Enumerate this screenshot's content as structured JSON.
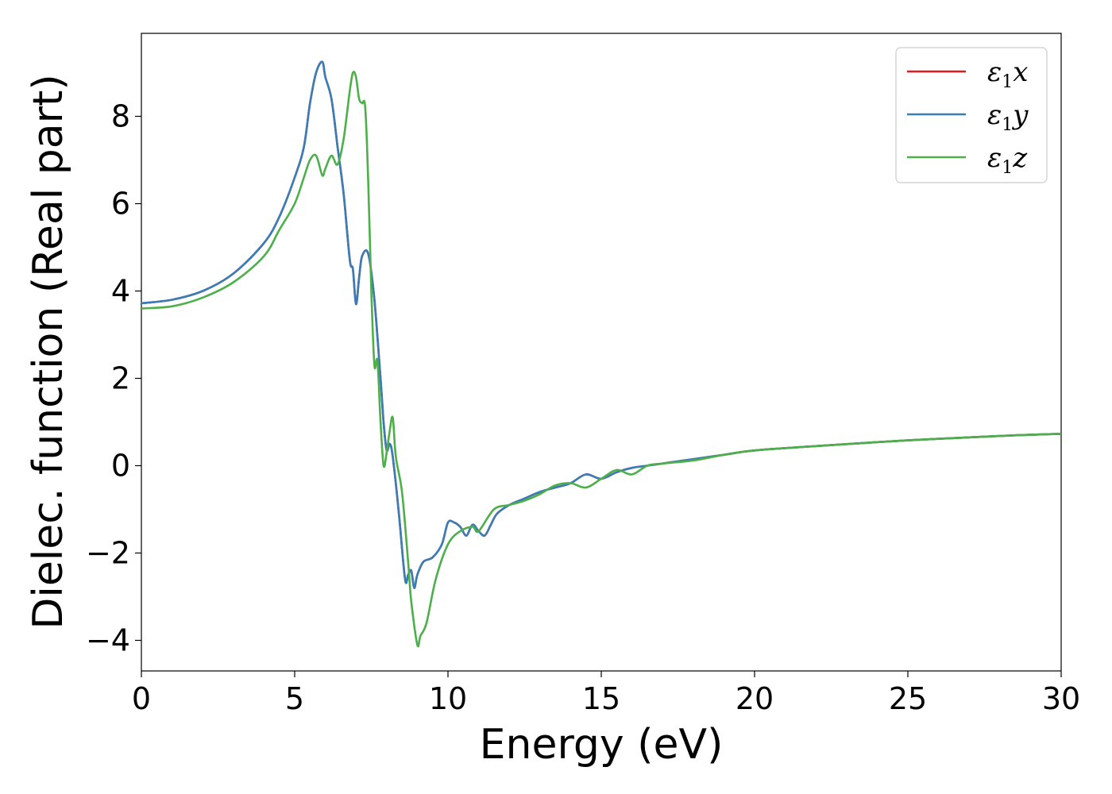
{
  "chart_data": {
    "type": "line",
    "xlabel": "Energy (eV)",
    "ylabel": "Dielec. function (Real part)",
    "xlim": [
      0,
      30
    ],
    "ylim": [
      -4.7,
      9.9
    ],
    "xticks": [
      0,
      5,
      10,
      15,
      20,
      25,
      30
    ],
    "yticks": [
      -4,
      -2,
      0,
      2,
      4,
      6,
      8
    ],
    "xtick_labels": [
      "0",
      "5",
      "10",
      "15",
      "20",
      "25",
      "30"
    ],
    "ytick_labels": [
      "−4",
      "−2",
      "0",
      "2",
      "4",
      "6",
      "8"
    ],
    "grid": false,
    "legend_position": "top-right",
    "series": [
      {
        "name": "ε1x",
        "legend_base": "ε",
        "legend_sub": "1",
        "legend_tail": "x",
        "color": "#e41a1c",
        "x": [
          0,
          1,
          2,
          3,
          4,
          4.5,
          5,
          5.3,
          5.5,
          5.7,
          5.9,
          6.0,
          6.2,
          6.4,
          6.6,
          6.8,
          6.9,
          7.0,
          7.1,
          7.2,
          7.4,
          7.6,
          7.8,
          7.9,
          8.0,
          8.1,
          8.2,
          8.4,
          8.6,
          8.7,
          8.8,
          8.9,
          9.0,
          9.2,
          9.5,
          9.8,
          10.0,
          10.2,
          10.4,
          10.6,
          10.8,
          11.0,
          11.2,
          11.4,
          11.6,
          12.0,
          12.5,
          13.0,
          13.5,
          14.0,
          14.5,
          15.0,
          15.5,
          16.0,
          16.5,
          17.0,
          17.5,
          18.0,
          19.0,
          20.0,
          22.0,
          25.0,
          28.0,
          30.0
        ],
        "y": [
          3.72,
          3.8,
          4.0,
          4.4,
          5.1,
          5.7,
          6.6,
          7.3,
          8.3,
          9.0,
          9.25,
          8.9,
          8.4,
          7.3,
          6.2,
          4.7,
          4.5,
          3.7,
          4.3,
          4.8,
          4.85,
          3.8,
          2.0,
          1.0,
          0.35,
          0.5,
          0.2,
          -1.1,
          -2.6,
          -2.5,
          -2.4,
          -2.8,
          -2.5,
          -2.2,
          -2.1,
          -1.8,
          -1.3,
          -1.3,
          -1.4,
          -1.6,
          -1.35,
          -1.5,
          -1.6,
          -1.35,
          -1.1,
          -0.9,
          -0.75,
          -0.6,
          -0.5,
          -0.4,
          -0.2,
          -0.3,
          -0.15,
          -0.05,
          0.0,
          0.05,
          0.1,
          0.15,
          0.25,
          0.35,
          0.45,
          0.58,
          0.68,
          0.73
        ]
      },
      {
        "name": "ε1y",
        "legend_base": "ε",
        "legend_sub": "1",
        "legend_tail": "y",
        "color": "#377eb8",
        "x": [
          0,
          1,
          2,
          3,
          4,
          4.5,
          5,
          5.3,
          5.5,
          5.7,
          5.9,
          6.0,
          6.2,
          6.4,
          6.6,
          6.8,
          6.9,
          7.0,
          7.1,
          7.2,
          7.4,
          7.6,
          7.8,
          7.9,
          8.0,
          8.1,
          8.2,
          8.4,
          8.6,
          8.7,
          8.8,
          8.9,
          9.0,
          9.2,
          9.5,
          9.8,
          10.0,
          10.2,
          10.4,
          10.6,
          10.8,
          11.0,
          11.2,
          11.4,
          11.6,
          12.0,
          12.5,
          13.0,
          13.5,
          14.0,
          14.5,
          15.0,
          15.5,
          16.0,
          16.5,
          17.0,
          17.5,
          18.0,
          19.0,
          20.0,
          22.0,
          25.0,
          28.0,
          30.0
        ],
        "y": [
          3.72,
          3.8,
          4.0,
          4.4,
          5.1,
          5.7,
          6.6,
          7.3,
          8.3,
          9.0,
          9.25,
          8.9,
          8.4,
          7.3,
          6.2,
          4.7,
          4.5,
          3.7,
          4.3,
          4.8,
          4.85,
          3.8,
          2.0,
          1.0,
          0.35,
          0.5,
          0.2,
          -1.1,
          -2.6,
          -2.5,
          -2.4,
          -2.8,
          -2.5,
          -2.2,
          -2.1,
          -1.8,
          -1.3,
          -1.3,
          -1.4,
          -1.6,
          -1.35,
          -1.5,
          -1.6,
          -1.35,
          -1.1,
          -0.9,
          -0.75,
          -0.6,
          -0.5,
          -0.4,
          -0.2,
          -0.3,
          -0.15,
          -0.05,
          0.0,
          0.05,
          0.1,
          0.15,
          0.25,
          0.35,
          0.45,
          0.58,
          0.68,
          0.73
        ]
      },
      {
        "name": "ε1z",
        "legend_base": "ε",
        "legend_sub": "1",
        "legend_tail": "z",
        "color": "#4daf4a",
        "x": [
          0,
          1,
          2,
          3,
          4,
          4.5,
          5,
          5.3,
          5.5,
          5.7,
          5.9,
          6.0,
          6.2,
          6.4,
          6.6,
          6.8,
          6.9,
          7.0,
          7.1,
          7.2,
          7.3,
          7.4,
          7.5,
          7.6,
          7.7,
          7.8,
          7.9,
          8.0,
          8.1,
          8.2,
          8.3,
          8.5,
          8.7,
          8.8,
          9.0,
          9.1,
          9.3,
          9.6,
          10.0,
          10.4,
          10.8,
          11.0,
          11.5,
          12.0,
          12.5,
          13.0,
          13.5,
          14.0,
          14.5,
          15.0,
          15.5,
          16.0,
          16.5,
          17.0,
          18.0,
          19.0,
          20.0,
          22.0,
          25.0,
          28.0,
          30.0
        ],
        "y": [
          3.6,
          3.65,
          3.85,
          4.2,
          4.8,
          5.4,
          6.0,
          6.6,
          7.0,
          7.1,
          6.65,
          6.8,
          7.1,
          6.9,
          7.5,
          8.6,
          9.0,
          8.9,
          8.4,
          8.3,
          8.2,
          6.5,
          4.0,
          2.3,
          2.4,
          1.0,
          0.0,
          0.3,
          0.8,
          1.1,
          0.2,
          -0.6,
          -2.2,
          -3.1,
          -4.1,
          -3.9,
          -3.6,
          -2.6,
          -1.8,
          -1.5,
          -1.4,
          -1.5,
          -1.0,
          -0.9,
          -0.8,
          -0.65,
          -0.45,
          -0.4,
          -0.5,
          -0.3,
          -0.1,
          -0.2,
          0.0,
          0.05,
          0.12,
          0.25,
          0.35,
          0.45,
          0.58,
          0.68,
          0.73
        ]
      }
    ]
  }
}
